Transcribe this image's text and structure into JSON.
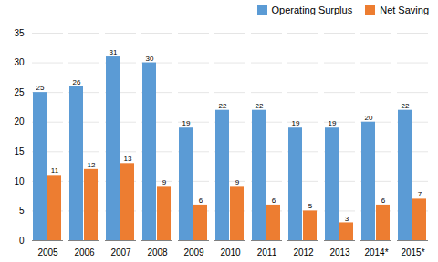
{
  "chart_data": {
    "type": "bar",
    "categories": [
      "2005",
      "2006",
      "2007",
      "2008",
      "2009",
      "2010",
      "2011",
      "2012",
      "2013",
      "2014*",
      "2015*"
    ],
    "series": [
      {
        "name": "Operating Surplus",
        "color": "#5B9BD5",
        "values": [
          25,
          26,
          31,
          30,
          19,
          22,
          22,
          19,
          19,
          20,
          22
        ]
      },
      {
        "name": "Net Saving",
        "color": "#ED7D31",
        "values": [
          11,
          12,
          13,
          9,
          6,
          9,
          6,
          5,
          3,
          6,
          7
        ]
      }
    ],
    "ylim": [
      0,
      35
    ],
    "yticks": [
      0,
      5,
      10,
      15,
      20,
      25,
      30,
      35
    ],
    "grid": true,
    "legend": "upper right",
    "data_labels": true
  }
}
